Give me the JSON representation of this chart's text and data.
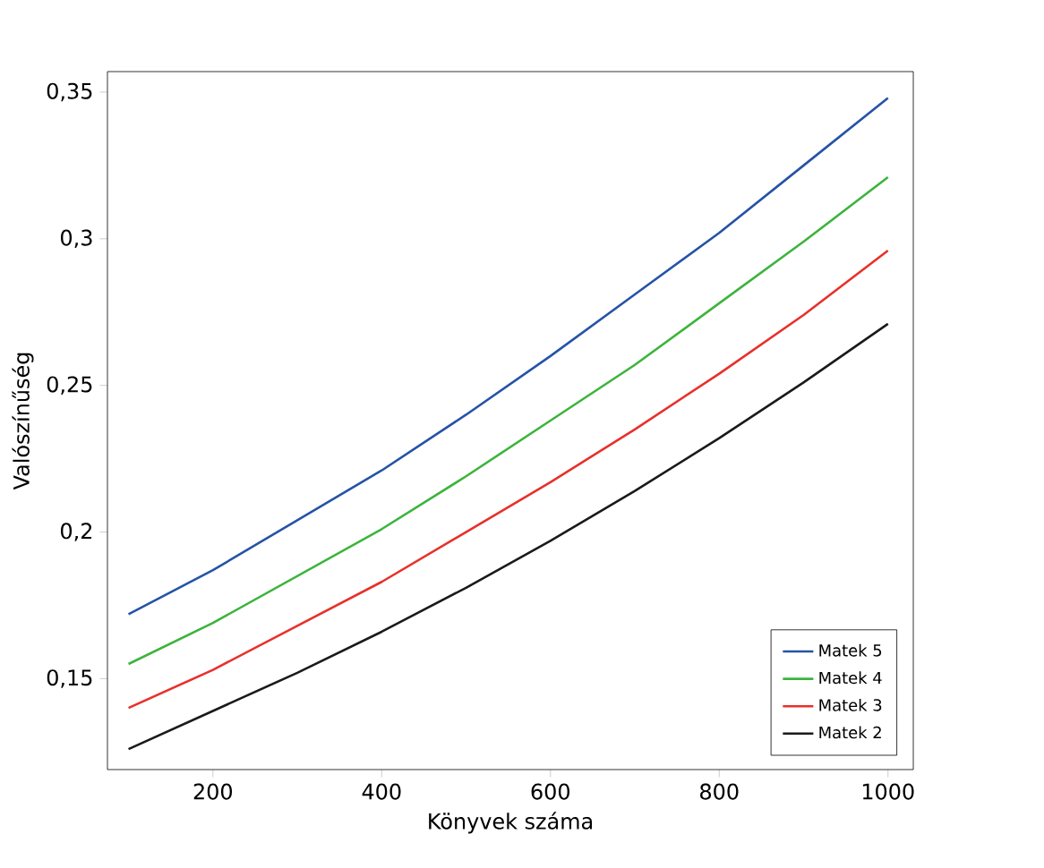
{
  "chart_data": {
    "type": "line",
    "xlabel": "Könyvek száma",
    "ylabel": "Valószínűség",
    "x": [
      100,
      200,
      300,
      400,
      500,
      600,
      700,
      800,
      900,
      1000
    ],
    "xlim": [
      75,
      1030
    ],
    "ylim": [
      0.119,
      0.357
    ],
    "xticks": [
      200,
      400,
      600,
      800,
      1000
    ],
    "yticks": [
      {
        "value": 0.15,
        "label": "0,15"
      },
      {
        "value": 0.2,
        "label": "0,2"
      },
      {
        "value": 0.25,
        "label": "0,25"
      },
      {
        "value": 0.3,
        "label": "0,3"
      },
      {
        "value": 0.35,
        "label": "0,35"
      }
    ],
    "legend": "bottom right",
    "grid": false,
    "marker": "none",
    "line_style": "solid",
    "series": [
      {
        "name": "Matek 5",
        "color": "#2553a6",
        "values": [
          0.172,
          0.187,
          0.204,
          0.221,
          0.24,
          0.26,
          0.281,
          0.302,
          0.325,
          0.348
        ]
      },
      {
        "name": "Matek 4",
        "color": "#3cb43c",
        "values": [
          0.155,
          0.169,
          0.185,
          0.201,
          0.219,
          0.238,
          0.257,
          0.278,
          0.299,
          0.321
        ]
      },
      {
        "name": "Matek 3",
        "color": "#e8302a",
        "values": [
          0.14,
          0.153,
          0.168,
          0.183,
          0.2,
          0.217,
          0.235,
          0.254,
          0.274,
          0.296
        ]
      },
      {
        "name": "Matek 2",
        "color": "#1a1a1a",
        "values": [
          0.126,
          0.139,
          0.152,
          0.166,
          0.181,
          0.197,
          0.214,
          0.232,
          0.251,
          0.271
        ]
      }
    ]
  }
}
